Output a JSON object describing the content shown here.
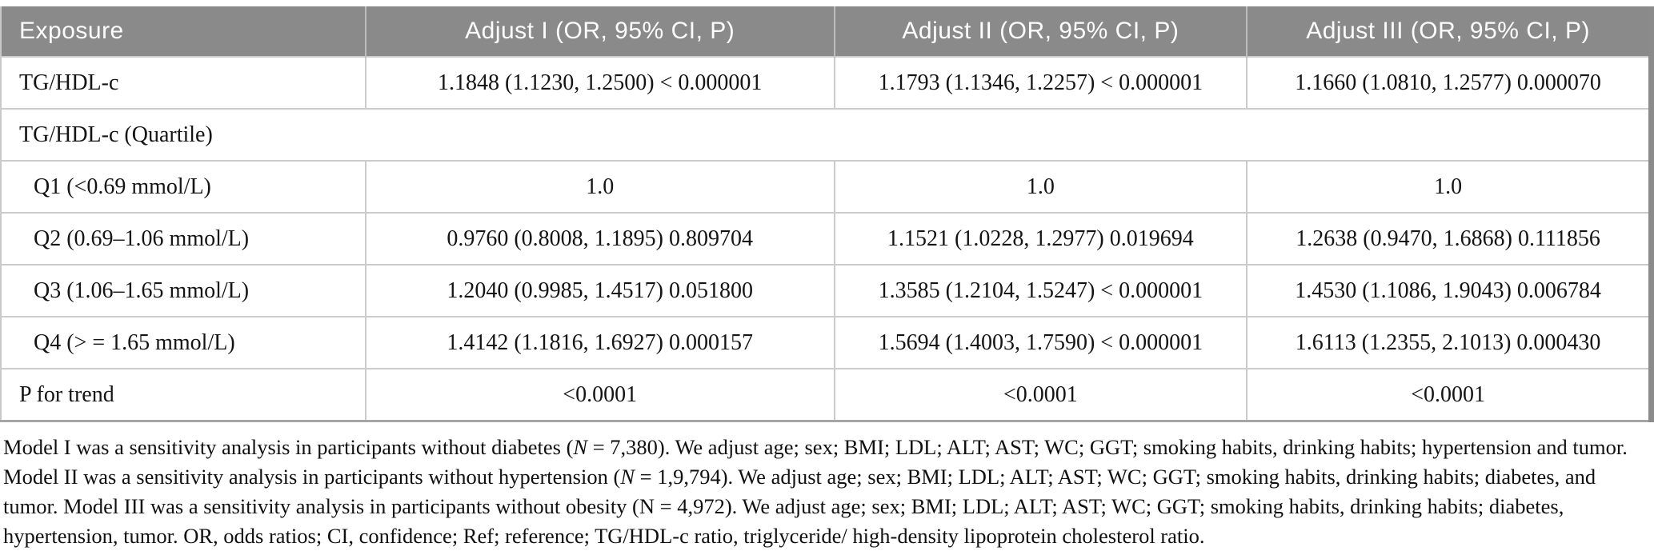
{
  "table": {
    "columns": [
      {
        "label": "Exposure"
      },
      {
        "label": "Adjust I (OR, 95% CI, P)"
      },
      {
        "label": "Adjust II (OR, 95% CI, P)"
      },
      {
        "label": "Adjust III (OR, 95% CI, P)"
      }
    ],
    "rows": [
      {
        "exposure": "TG/HDL-c",
        "indent": false,
        "span": false,
        "values": [
          "1.1848 (1.1230, 1.2500) < 0.000001",
          "1.1793 (1.1346, 1.2257) < 0.000001",
          "1.1660 (1.0810, 1.2577) 0.000070"
        ]
      },
      {
        "exposure": "TG/HDL-c (Quartile)",
        "indent": false,
        "span": true,
        "values": []
      },
      {
        "exposure": "Q1 (<0.69 mmol/L)",
        "indent": true,
        "span": false,
        "values": [
          "1.0",
          "1.0",
          "1.0"
        ]
      },
      {
        "exposure": "Q2 (0.69–1.06 mmol/L)",
        "indent": true,
        "span": false,
        "values": [
          "0.9760 (0.8008, 1.1895) 0.809704",
          "1.1521 (1.0228, 1.2977) 0.019694",
          "1.2638 (0.9470, 1.6868) 0.111856"
        ]
      },
      {
        "exposure": "Q3 (1.06–1.65 mmol/L)",
        "indent": true,
        "span": false,
        "values": [
          "1.2040 (0.9985, 1.4517) 0.051800",
          "1.3585 (1.2104, 1.5247) < 0.000001",
          "1.4530 (1.1086, 1.9043) 0.006784"
        ]
      },
      {
        "exposure": "Q4 (> = 1.65 mmol/L)",
        "indent": true,
        "span": false,
        "values": [
          "1.4142 (1.1816, 1.6927) 0.000157",
          "1.5694 (1.4003, 1.7590) < 0.000001",
          "1.6113 (1.2355, 2.1013) 0.000430"
        ]
      },
      {
        "exposure": "P for trend",
        "indent": false,
        "span": false,
        "values": [
          "<0.0001",
          "<0.0001",
          "<0.0001"
        ]
      }
    ]
  },
  "footnote": {
    "segments": [
      {
        "text": "Model I was a sensitivity analysis in participants without diabetes (",
        "italic": false
      },
      {
        "text": "N",
        "italic": true
      },
      {
        "text": " = 7,380). We adjust age; sex; BMI; LDL; ALT; AST; WC; GGT; smoking habits, drinking habits; hypertension and tumor. Model II was a sensitivity analysis in participants without hypertension (",
        "italic": false
      },
      {
        "text": "N",
        "italic": true
      },
      {
        "text": " = 1,9,794). We adjust age; sex; BMI; LDL; ALT; AST; WC; GGT; smoking habits, drinking habits; diabetes, and tumor. Model III was a sensitivity analysis in participants without obesity (N = 4,972). We adjust age; sex; BMI; LDL; ALT; AST; WC; GGT; smoking habits, drinking habits; diabetes, hypertension, tumor. OR, odds ratios; CI, confidence; Ref; reference; TG/HDL-c ratio, triglyceride/ high-density lipoprotein cholesterol ratio.",
        "italic": false
      }
    ]
  },
  "colors": {
    "header_bg": "#8a8a8a",
    "header_text": "#fdfdfd",
    "row_border": "#cbcbcb",
    "outer_right_border": "#8b8b8b",
    "body_text": "#141414"
  }
}
